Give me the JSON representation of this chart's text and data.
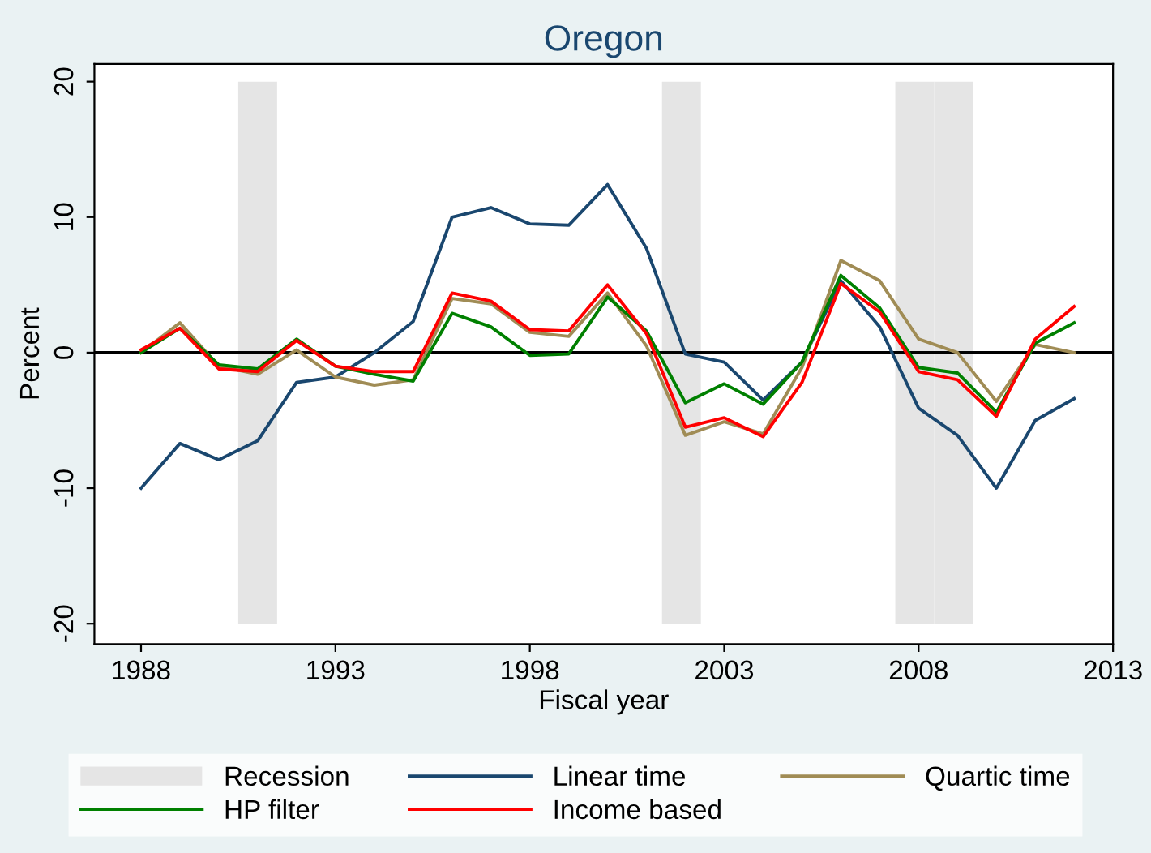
{
  "chart_data": {
    "type": "line",
    "title": "Oregon",
    "xlabel": "Fiscal year",
    "ylabel": "Percent",
    "x": [
      1988,
      1989,
      1990,
      1991,
      1992,
      1993,
      1994,
      1995,
      1996,
      1997,
      1998,
      1999,
      2000,
      2001,
      2002,
      2003,
      2004,
      2005,
      2006,
      2007,
      2008,
      2009,
      2010,
      2011,
      2012
    ],
    "series": [
      {
        "name": "Linear time",
        "color": "#1a476f",
        "values": [
          -10.0,
          -6.7,
          -7.9,
          -6.5,
          -2.2,
          -1.8,
          0.0,
          2.3,
          10.0,
          10.7,
          9.5,
          9.4,
          12.4,
          7.7,
          -0.1,
          -0.7,
          -3.5,
          -0.7,
          5.3,
          1.9,
          -4.1,
          -6.1,
          -10.0,
          -5.0,
          -3.4
        ]
      },
      {
        "name": "Quartic time",
        "color": "#a08c55",
        "values": [
          0.0,
          2.2,
          -1.0,
          -1.6,
          0.2,
          -1.8,
          -2.4,
          -2.0,
          4.0,
          3.6,
          1.5,
          1.2,
          4.4,
          0.5,
          -6.1,
          -5.1,
          -6.0,
          -1.1,
          6.8,
          5.3,
          1.0,
          0.0,
          -3.6,
          0.6,
          0.0
        ]
      },
      {
        "name": "HP filter",
        "color": "#008000",
        "values": [
          0.0,
          1.8,
          -0.9,
          -1.2,
          1.0,
          -1.0,
          -1.6,
          -2.1,
          2.9,
          1.9,
          -0.2,
          -0.1,
          4.1,
          1.6,
          -3.7,
          -2.3,
          -3.8,
          -0.7,
          5.7,
          3.3,
          -1.1,
          -1.5,
          -4.4,
          0.7,
          2.2
        ]
      },
      {
        "name": "Income based",
        "color": "#ff0000",
        "values": [
          0.2,
          1.8,
          -1.2,
          -1.4,
          0.9,
          -1.0,
          -1.4,
          -1.4,
          4.4,
          3.8,
          1.7,
          1.6,
          5.0,
          1.4,
          -5.5,
          -4.8,
          -6.2,
          -2.2,
          5.1,
          3.0,
          -1.4,
          -2.0,
          -4.7,
          1.0,
          3.4
        ]
      }
    ],
    "bands": [
      {
        "axis": "x",
        "from": 1990.5,
        "to": 1991.5,
        "label": "Recession",
        "color": "#e5e5e5"
      },
      {
        "axis": "x",
        "from": 2001.4,
        "to": 2002.4,
        "color": "#e5e5e5"
      },
      {
        "axis": "x",
        "from": 2007.4,
        "to": 2008.4,
        "color": "#e5e5e5"
      },
      {
        "axis": "x",
        "from": 2008.4,
        "to": 2009.4,
        "color": "#e5e5e5"
      }
    ],
    "ref_lines": [
      {
        "axis": "y",
        "value": 0,
        "color": "#000000"
      }
    ],
    "xlim": [
      1986.8,
      2013
    ],
    "xticks": [
      1988,
      1993,
      1998,
      2003,
      2008,
      2013
    ],
    "ylim": [
      -21.5,
      21.3
    ],
    "yticks": [
      -20,
      -10,
      0,
      10,
      20
    ],
    "grid": false,
    "legend": "bottom",
    "marker": "none",
    "line_style": "solid"
  }
}
